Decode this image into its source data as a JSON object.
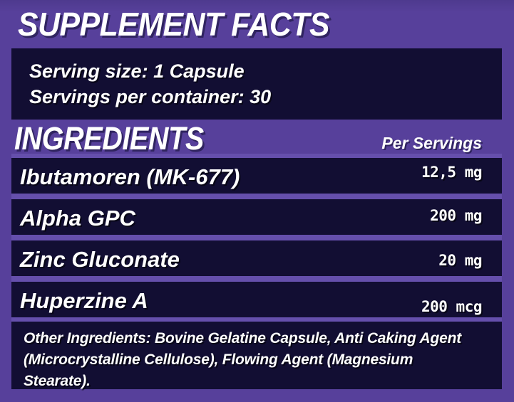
{
  "title": "SUPPLEMENT FACTS",
  "serving": {
    "size_line": "Serving size: 1 Capsule",
    "per_container_line": "Servings per container: 30"
  },
  "ingredients_header": {
    "label": "INGREDIENTS",
    "amount_column_label": "Per Servings"
  },
  "ingredients": [
    {
      "name": "Ibutamoren (MK-677)",
      "amount": "12,5 mg"
    },
    {
      "name": "Alpha GPC",
      "amount": "200 mg"
    },
    {
      "name": "Zinc Gluconate",
      "amount": "20 mg"
    },
    {
      "name": "Huperzine A",
      "amount": "200 mcg"
    }
  ],
  "other_ingredients": "Other Ingredients: Bovine Gelatine Capsule, Anti Caking Agent (Microcrystalline Cellulose), Flowing Agent (Magnesium Stearate).",
  "colors": {
    "background_purple": "#57409B",
    "panel_navy": "#120E33",
    "row_separator_purple": "#654FAC",
    "text": "#FFFFFF"
  }
}
